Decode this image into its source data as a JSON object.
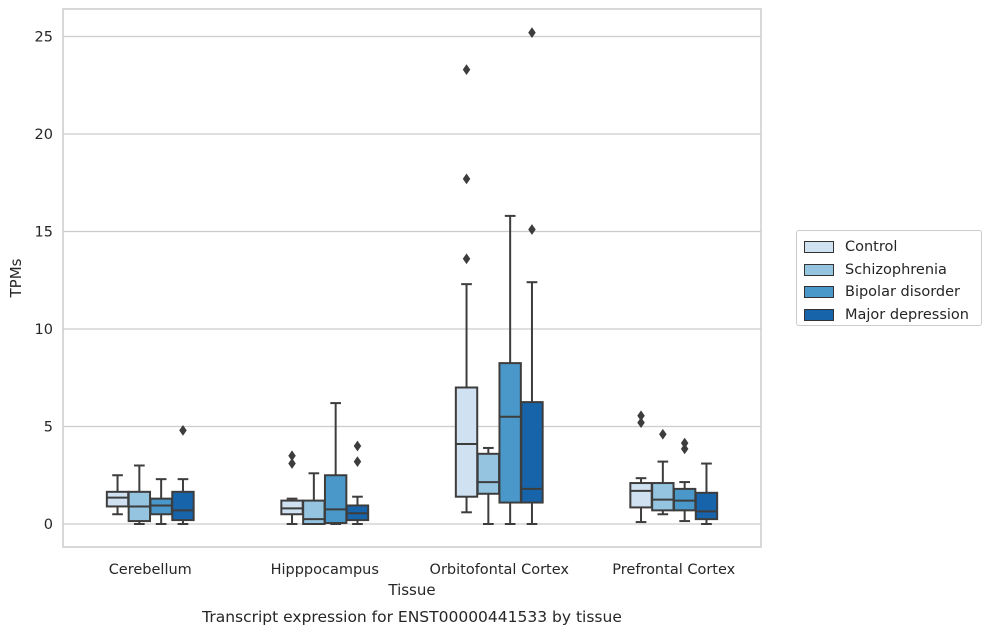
{
  "chart_data": {
    "type": "box",
    "title": "Transcript expression for ENST00000441533 by tissue",
    "xlabel": "Tissue",
    "ylabel": "TPMs",
    "ylim": [
      -1.2,
      26.5
    ],
    "yticks": [
      0,
      5,
      10,
      15,
      20,
      25
    ],
    "grid": "horizontal",
    "legend_position": "right",
    "categories": [
      "Cerebellum",
      "Hipppocampus",
      "Orbitofontal Cortex",
      "Prefrontal Cortex"
    ],
    "series": [
      {
        "name": "Control",
        "color": "#d0e1f2",
        "boxes": [
          {
            "whislo": 0.5,
            "q1": 0.9,
            "med": 1.35,
            "q3": 1.65,
            "whishi": 2.5,
            "fliers": []
          },
          {
            "whislo": 0.0,
            "q1": 0.5,
            "med": 0.8,
            "q3": 1.2,
            "whishi": 1.3,
            "fliers": [
              3.1,
              3.5
            ]
          },
          {
            "whislo": 0.6,
            "q1": 1.4,
            "med": 4.1,
            "q3": 7.0,
            "whishi": 12.3,
            "fliers": [
              13.6,
              17.7,
              23.3
            ]
          },
          {
            "whislo": 0.1,
            "q1": 0.85,
            "med": 1.7,
            "q3": 2.1,
            "whishi": 2.35,
            "fliers": [
              5.2,
              5.55
            ]
          }
        ]
      },
      {
        "name": "Schizophrenia",
        "color": "#94c4df",
        "boxes": [
          {
            "whislo": 0.0,
            "q1": 0.15,
            "med": 0.9,
            "q3": 1.65,
            "whishi": 3.0,
            "fliers": []
          },
          {
            "whislo": 0.0,
            "q1": 0.0,
            "med": 0.25,
            "q3": 1.2,
            "whishi": 2.6,
            "fliers": []
          },
          {
            "whislo": 0.0,
            "q1": 1.55,
            "med": 2.15,
            "q3": 3.6,
            "whishi": 3.9,
            "fliers": []
          },
          {
            "whislo": 0.5,
            "q1": 0.7,
            "med": 1.25,
            "q3": 2.1,
            "whishi": 3.2,
            "fliers": [
              4.6
            ]
          }
        ]
      },
      {
        "name": "Bipolar disorder",
        "color": "#4a98c9",
        "boxes": [
          {
            "whislo": 0.0,
            "q1": 0.5,
            "med": 0.95,
            "q3": 1.3,
            "whishi": 2.3,
            "fliers": []
          },
          {
            "whislo": 0.0,
            "q1": 0.05,
            "med": 0.75,
            "q3": 2.5,
            "whishi": 6.2,
            "fliers": []
          },
          {
            "whislo": 0.0,
            "q1": 1.1,
            "med": 5.5,
            "q3": 8.25,
            "whishi": 15.8,
            "fliers": []
          },
          {
            "whislo": 0.15,
            "q1": 0.7,
            "med": 1.2,
            "q3": 1.8,
            "whishi": 2.15,
            "fliers": [
              3.85,
              4.15
            ]
          }
        ]
      },
      {
        "name": "Major depression",
        "color": "#1764ab",
        "boxes": [
          {
            "whislo": 0.0,
            "q1": 0.2,
            "med": 0.7,
            "q3": 1.65,
            "whishi": 2.3,
            "fliers": [
              4.8
            ]
          },
          {
            "whislo": 0.0,
            "q1": 0.2,
            "med": 0.55,
            "q3": 0.95,
            "whishi": 1.4,
            "fliers": [
              3.2,
              4.0
            ]
          },
          {
            "whislo": 0.0,
            "q1": 1.1,
            "med": 1.8,
            "q3": 6.25,
            "whishi": 12.4,
            "fliers": [
              15.1,
              25.2
            ]
          },
          {
            "whislo": 0.0,
            "q1": 0.25,
            "med": 0.65,
            "q3": 1.6,
            "whishi": 3.1,
            "fliers": []
          }
        ]
      }
    ]
  }
}
